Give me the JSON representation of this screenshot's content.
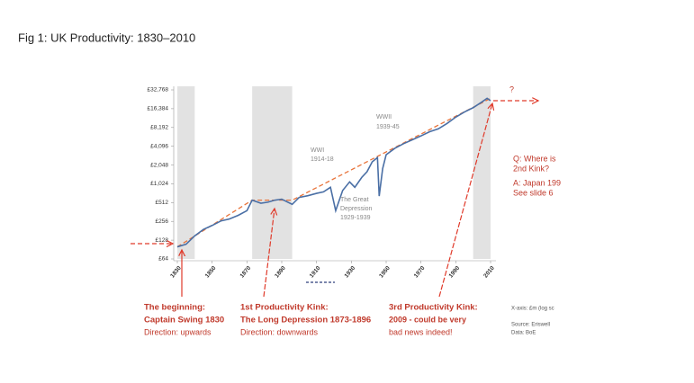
{
  "page_title": "Fig 1: UK Productivity: 1830–2010",
  "chart_data": {
    "type": "line",
    "log_scale": true,
    "grid": false,
    "color": "#4a6fa5",
    "x": [
      1830,
      1835,
      1840,
      1845,
      1850,
      1855,
      1860,
      1865,
      1870,
      1873,
      1878,
      1882,
      1886,
      1890,
      1896,
      1900,
      1905,
      1910,
      1914,
      1918,
      1921,
      1925,
      1929,
      1932,
      1936,
      1939,
      1942,
      1945,
      1946,
      1948,
      1950,
      1955,
      1960,
      1965,
      1970,
      1975,
      1980,
      1985,
      1990,
      1995,
      2000,
      2005,
      2008,
      2010
    ],
    "values": [
      100,
      110,
      150,
      190,
      220,
      260,
      280,
      320,
      380,
      560,
      500,
      520,
      560,
      580,
      480,
      620,
      660,
      720,
      760,
      900,
      380,
      800,
      1100,
      900,
      1300,
      1600,
      2300,
      2700,
      650,
      1800,
      3000,
      3800,
      4500,
      5200,
      6000,
      7000,
      7800,
      9500,
      12000,
      14500,
      17000,
      21000,
      24000,
      22000
    ],
    "trend": {
      "color": "#e8733a",
      "x": [
        1830,
        1873,
        1896,
        2010
      ],
      "values": [
        100,
        560,
        560,
        24000
      ]
    },
    "shaded_periods": [
      [
        1830,
        1840
      ],
      [
        1873,
        1896
      ],
      [
        2000,
        2010
      ]
    ],
    "xlim": [
      1830,
      2010
    ],
    "xticks": [
      1830,
      1850,
      1870,
      1890,
      1910,
      1930,
      1950,
      1970,
      1990,
      2010
    ],
    "ylim": [
      64,
      32768
    ],
    "yticks": [
      {
        "value": 64,
        "label": "£64"
      },
      {
        "value": 128,
        "label": "£128"
      },
      {
        "value": 256,
        "label": "£256"
      },
      {
        "value": 512,
        "label": "£512"
      },
      {
        "value": 1024,
        "label": "£1,024"
      },
      {
        "value": 2048,
        "label": "£2,048"
      },
      {
        "value": 4096,
        "label": "£4,096"
      },
      {
        "value": 8192,
        "label": "£8,192"
      },
      {
        "value": 16384,
        "label": "£16,384"
      },
      {
        "value": 32768,
        "label": "£32,768"
      }
    ],
    "annotations": [
      {
        "text": "?"
      },
      {
        "text": "WWII"
      },
      {
        "text": "1939-45"
      },
      {
        "text": "WWI"
      },
      {
        "text": "1914-18"
      },
      {
        "text": "The Great"
      },
      {
        "text": "Depression"
      },
      {
        "text": "1929-1939"
      },
      {
        "text": "Q: Where is"
      },
      {
        "text": "2nd Kink?"
      },
      {
        "text": "A: Japan 199"
      },
      {
        "text": "See slide 6"
      },
      {
        "text": "The beginning:"
      },
      {
        "text": "Captain Swing 1830"
      },
      {
        "text": "Direction: upwards"
      },
      {
        "text": "1st Productivity Kink:"
      },
      {
        "text": "The Long Depression 1873-1896"
      },
      {
        "text": "Direction: downwards"
      },
      {
        "text": "3rd Productivity Kink:"
      },
      {
        "text": "2009 - could be very"
      },
      {
        "text": "bad news indeed!"
      },
      {
        "text": "X-axis: £m (log sc"
      },
      {
        "text": "Source: Eriswell"
      },
      {
        "text": "Data: BoE"
      }
    ]
  }
}
